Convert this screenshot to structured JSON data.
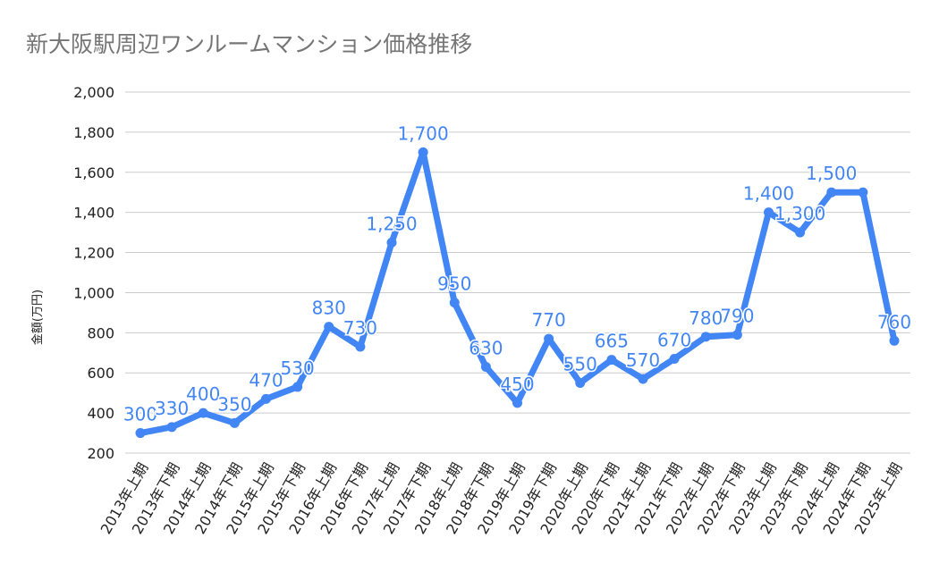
{
  "chart_data": {
    "type": "line",
    "title": "新大阪駅周辺ワンルームマンション価格推移",
    "xlabel": "",
    "ylabel": "金額(万円)",
    "ylim": [
      200,
      2000
    ],
    "yticks": [
      "200",
      "400",
      "600",
      "800",
      "1,000",
      "1,200",
      "1,400",
      "1,600",
      "1,800",
      "2,000"
    ],
    "grid": true,
    "line_color": "#4285f4",
    "label_color": "#4285f4",
    "categories": [
      "2013年上期",
      "2013年下期",
      "2014年上期",
      "2014年下期",
      "2015年上期",
      "2015年下期",
      "2016年上期",
      "2016年下期",
      "2017年上期",
      "2017年下期",
      "2018年上期",
      "2018年下期",
      "2019年上期",
      "2019年下期",
      "2020年上期",
      "2020年下期",
      "2021年上期",
      "2021年下期",
      "2022年上期",
      "2022年下期",
      "2023年上期",
      "2023年下期",
      "2024年上期",
      "2024年下期",
      "2025年上期"
    ],
    "values": [
      300,
      330,
      400,
      350,
      470,
      530,
      830,
      730,
      1250,
      1700,
      950,
      630,
      450,
      770,
      550,
      665,
      570,
      670,
      780,
      790,
      1400,
      1300,
      1500,
      1500,
      760
    ],
    "data_labels": [
      "300",
      "330",
      "400",
      "350",
      "470",
      "530",
      "830",
      "730",
      "1,250",
      "1,700",
      "950",
      "630",
      "450",
      "770",
      "550",
      "665",
      "570",
      "670",
      "780",
      "790",
      "1,400",
      "1,300",
      "1,500",
      "",
      "760"
    ]
  }
}
